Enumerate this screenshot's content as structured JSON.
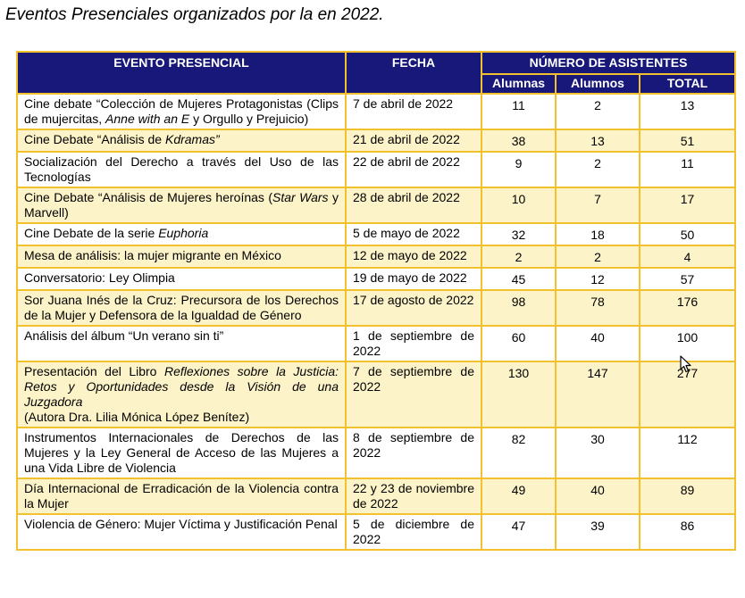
{
  "caption": "Eventos Presenciales organizados por la en 2022.",
  "headers": {
    "evento": "EVENTO PRESENCIAL",
    "fecha": "FECHA",
    "asistentes": "NÚMERO DE ASISTENTES",
    "alumnas": "Alumnas",
    "alumnos": "Alumnos",
    "total": "TOTAL"
  },
  "rows": [
    {
      "evento_html": "Cine debate “Colección de Mujeres Protagonistas (Clips de mujercitas, <i>Anne with an E</i> y Orgullo y Prejuicio)",
      "fecha": "7 de abril de 2022",
      "alumnas": "11",
      "alumnos": "2",
      "total": "13",
      "shade": false
    },
    {
      "evento_html": "Cine Debate “Análisis de <i>Kdramas”</i>",
      "fecha": "21 de abril de 2022",
      "alumnas": "38",
      "alumnos": "13",
      "total": "51",
      "shade": true
    },
    {
      "evento_html": "Socialización del Derecho a través del Uso de las Tecnologías",
      "fecha": "22 de abril de 2022",
      "alumnas": "9",
      "alumnos": "2",
      "total": "11",
      "shade": false
    },
    {
      "evento_html": "Cine Debate “Análisis de Mujeres heroínas (<i>Star Wars</i> y Marvell)",
      "fecha": "28 de abril de 2022",
      "alumnas": "10",
      "alumnos": "7",
      "total": "17",
      "shade": true
    },
    {
      "evento_html": "Cine Debate de la serie <i>Euphoria</i>",
      "fecha": "5 de mayo de 2022",
      "alumnas": "32",
      "alumnos": "18",
      "total": "50",
      "shade": false
    },
    {
      "evento_html": "Mesa de análisis: la mujer migrante en México",
      "fecha": "12 de mayo de 2022",
      "alumnas": "2",
      "alumnos": "2",
      "total": "4",
      "shade": true
    },
    {
      "evento_html": "Conversatorio: Ley Olimpia",
      "fecha": "19 de mayo de 2022",
      "alumnas": "45",
      "alumnos": "12",
      "total": "57",
      "shade": false
    },
    {
      "evento_html": "Sor Juana Inés de la Cruz: Precursora de los Derechos de la Mujer y Defensora de la Igualdad de Género",
      "fecha": "17 de agosto de 2022",
      "alumnas": "98",
      "alumnos": "78",
      "total": "176",
      "shade": true
    },
    {
      "evento_html": "Análisis del álbum “Un verano sin ti”",
      "fecha": "1 de septiembre de 2022",
      "alumnas": "60",
      "alumnos": "40",
      "total": "100",
      "shade": false
    },
    {
      "evento_html": "Presentación del Libro <i>Reflexiones sobre la Justicia: Retos y Oportunidades desde la Visión de una Juzgadora</i><br>(Autora Dra. Lilia Mónica López Benítez)",
      "fecha": "7 de septiembre de 2022",
      "alumnas": "130",
      "alumnos": "147",
      "total": "277",
      "shade": true
    },
    {
      "evento_html": "Instrumentos Internacionales de Derechos de las Mujeres y la Ley General de Acceso de las Mujeres a una Vida Libre de Violencia",
      "fecha": "8 de septiembre de 2022",
      "alumnas": "82",
      "alumnos": "30",
      "total": "112",
      "shade": false
    },
    {
      "evento_html": "Día Internacional de Erradicación de la Violencia contra la Mujer",
      "fecha": "22 y 23 de noviembre de 2022",
      "alumnas": "49",
      "alumnos": "40",
      "total": "89",
      "shade": true
    },
    {
      "evento_html": "Violencia de Género: Mujer Víctima y Justificación Penal",
      "fecha": "5 de diciembre de 2022",
      "alumnas": "47",
      "alumnos": "39",
      "total": "86",
      "shade": false
    }
  ]
}
